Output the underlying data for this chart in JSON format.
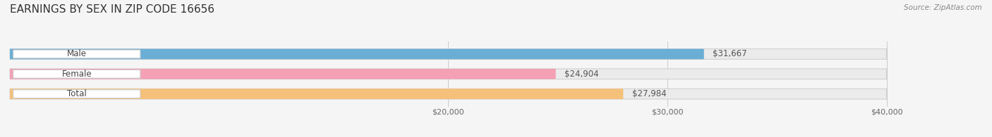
{
  "title": "EARNINGS BY SEX IN ZIP CODE 16656",
  "source": "Source: ZipAtlas.com",
  "categories": [
    "Male",
    "Female",
    "Total"
  ],
  "values": [
    31667,
    24904,
    27984
  ],
  "bar_colors": [
    "#6aaed6",
    "#f4a0b5",
    "#f5c07a"
  ],
  "bar_bg_color": "#ebebeb",
  "xmin": 0,
  "xmax": 40000,
  "xticks": [
    20000,
    30000,
    40000
  ],
  "xtick_labels": [
    "$20,000",
    "$30,000",
    "$40,000"
  ],
  "bar_height": 0.52,
  "background_color": "#f5f5f5",
  "title_fontsize": 11,
  "label_fontsize": 8.5,
  "value_fontsize": 8.5,
  "source_fontsize": 7.5
}
